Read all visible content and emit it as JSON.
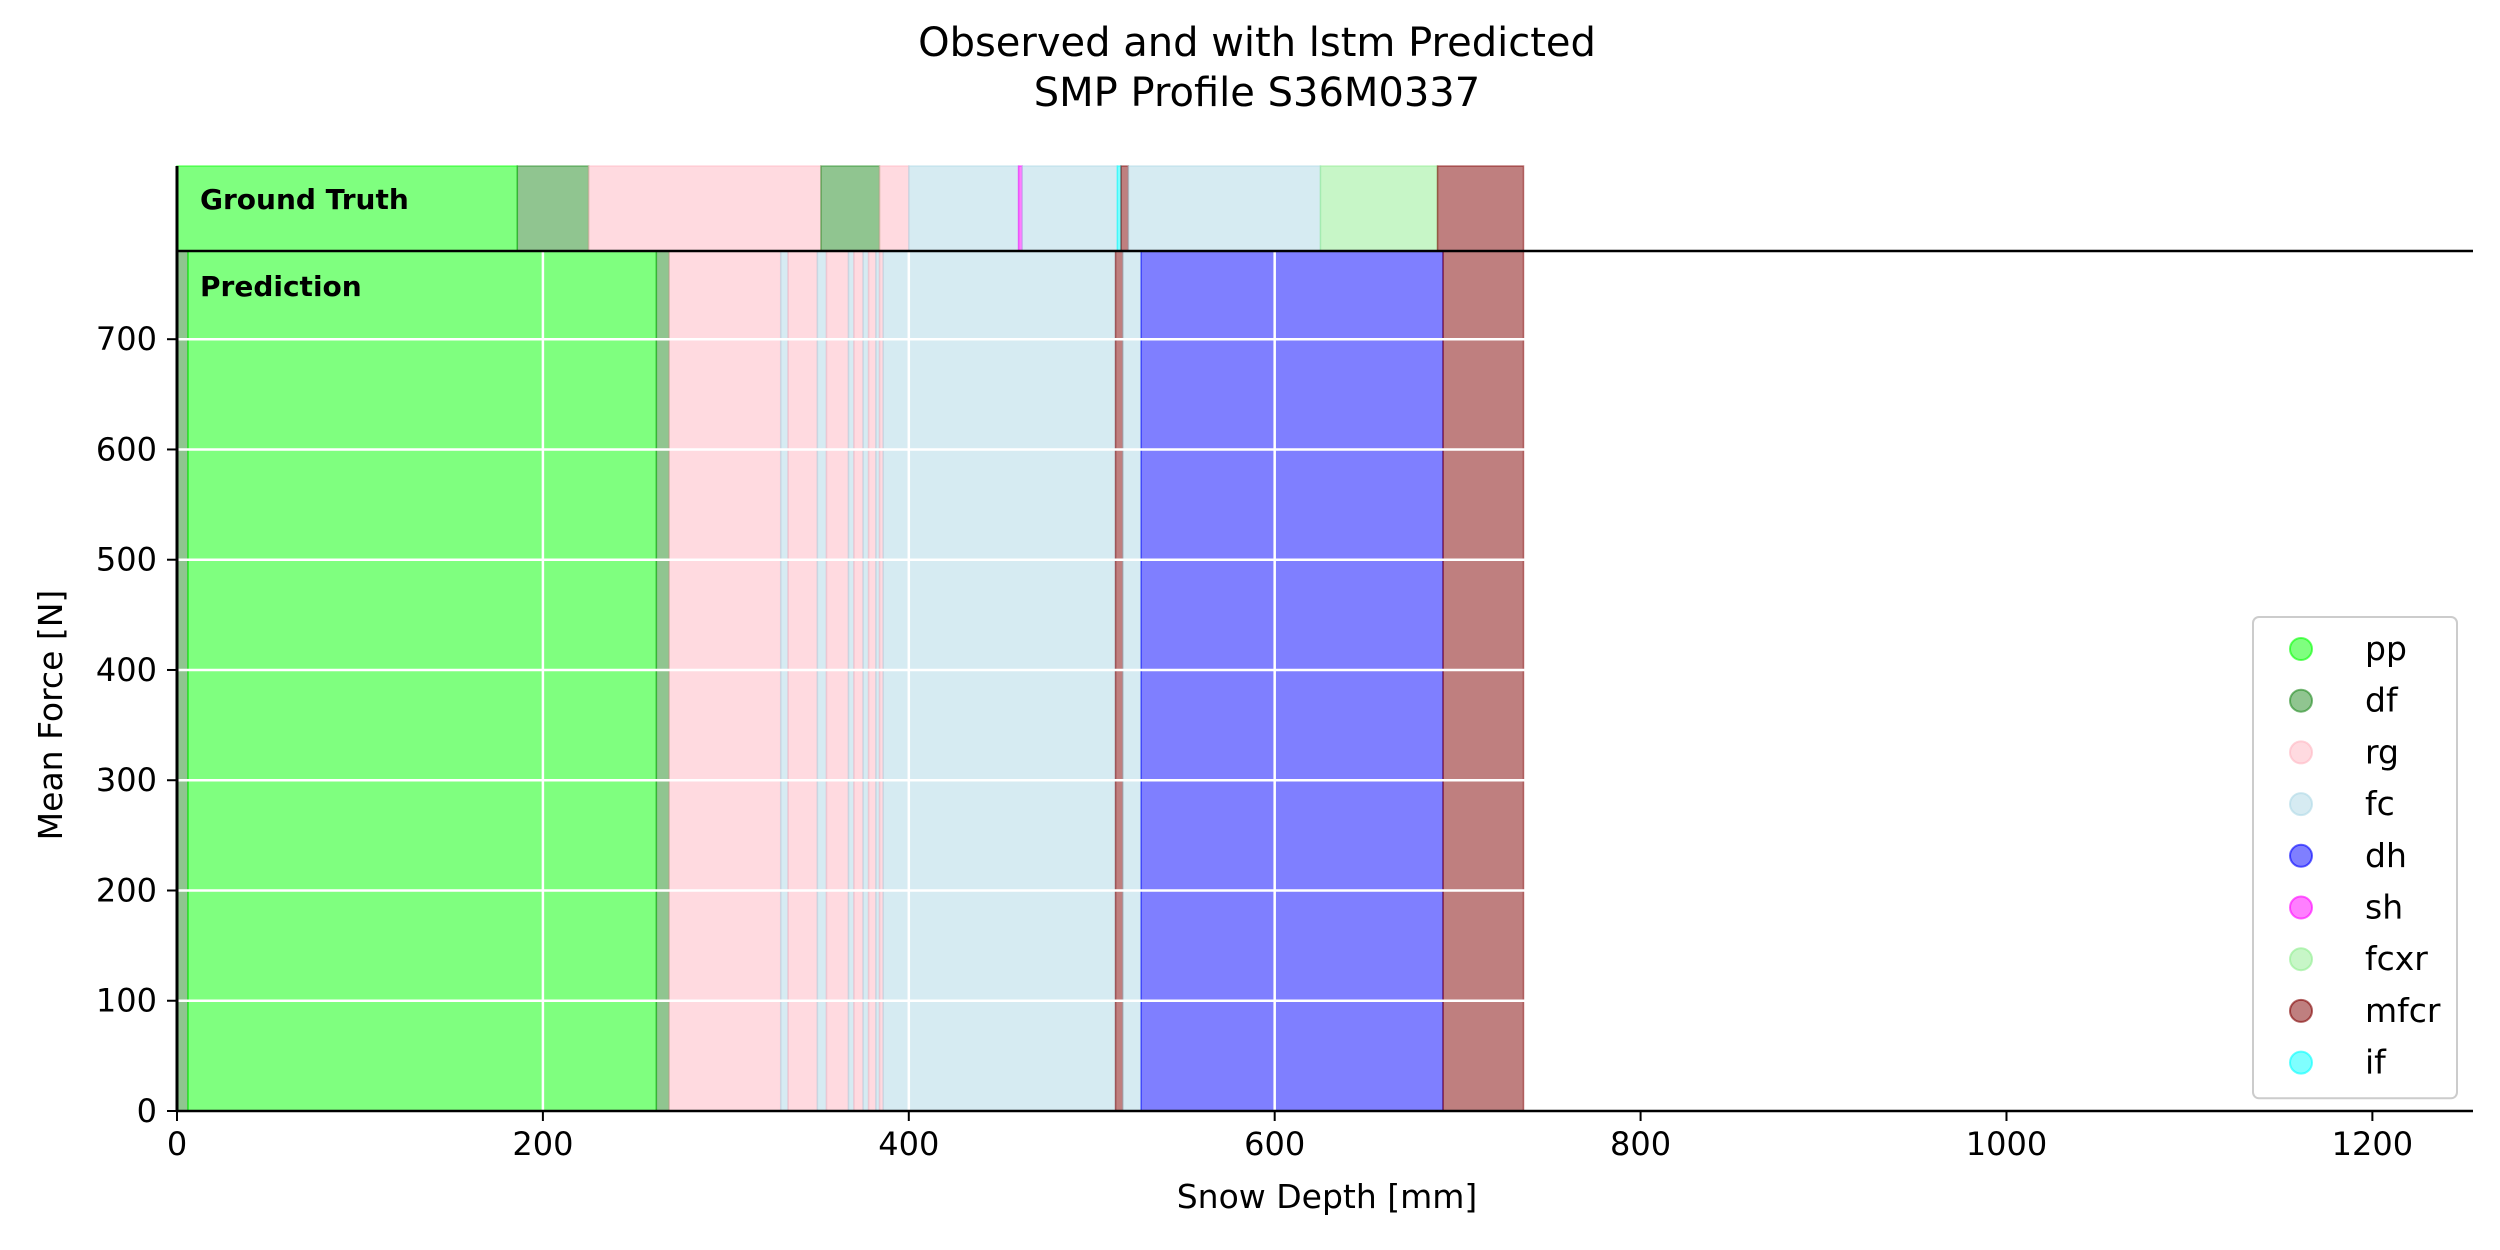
{
  "chart_data": {
    "type": "area",
    "title_line1": "Observed and with lstm Predicted",
    "title_line2": "SMP Profile S36M0337",
    "xlabel": "Snow Depth [mm]",
    "ylabel": "Mean Force [N]",
    "xlim": [
      0,
      1255
    ],
    "ylim": [
      0,
      780
    ],
    "xticks": [
      0,
      200,
      400,
      600,
      800,
      1000,
      1200
    ],
    "yticks": [
      0,
      100,
      200,
      300,
      400,
      500,
      600,
      700
    ],
    "grid": true,
    "legend_position": "lower-right",
    "panels": {
      "ground_truth_label": "Ground Truth",
      "prediction_label": "Prediction"
    },
    "classes": [
      {
        "name": "pp",
        "color": "#00ff00"
      },
      {
        "name": "df",
        "color": "#228b22"
      },
      {
        "name": "rg",
        "color": "#ffb6c1"
      },
      {
        "name": "fc",
        "color": "#add8e6"
      },
      {
        "name": "dh",
        "color": "#0000ff"
      },
      {
        "name": "sh",
        "color": "#ff00ff"
      },
      {
        "name": "fcxr",
        "color": "#90ee90"
      },
      {
        "name": "mfcr",
        "color": "#800000"
      },
      {
        "name": "if",
        "color": "#00ffff"
      }
    ],
    "ground_truth_segments": [
      {
        "start": 0,
        "end": 186,
        "label": "pp"
      },
      {
        "start": 186,
        "end": 225,
        "label": "df"
      },
      {
        "start": 225,
        "end": 352,
        "label": "rg"
      },
      {
        "start": 352,
        "end": 384,
        "label": "df"
      },
      {
        "start": 384,
        "end": 400,
        "label": "rg"
      },
      {
        "start": 400,
        "end": 460,
        "label": "fc"
      },
      {
        "start": 460,
        "end": 462,
        "label": "sh"
      },
      {
        "start": 462,
        "end": 514,
        "label": "fc"
      },
      {
        "start": 514,
        "end": 516,
        "label": "if"
      },
      {
        "start": 516,
        "end": 520,
        "label": "mfcr"
      },
      {
        "start": 520,
        "end": 625,
        "label": "fc"
      },
      {
        "start": 625,
        "end": 689,
        "label": "fcxr"
      },
      {
        "start": 689,
        "end": 736,
        "label": "mfcr"
      }
    ],
    "prediction_segments": [
      {
        "start": 0,
        "end": 6,
        "label": "df"
      },
      {
        "start": 6,
        "end": 262,
        "label": "pp"
      },
      {
        "start": 262,
        "end": 269,
        "label": "df"
      },
      {
        "start": 269,
        "end": 330,
        "label": "rg"
      },
      {
        "start": 330,
        "end": 334,
        "label": "fc"
      },
      {
        "start": 334,
        "end": 350,
        "label": "rg"
      },
      {
        "start": 350,
        "end": 355,
        "label": "fc"
      },
      {
        "start": 355,
        "end": 367,
        "label": "rg"
      },
      {
        "start": 367,
        "end": 370,
        "label": "fc"
      },
      {
        "start": 370,
        "end": 375,
        "label": "rg"
      },
      {
        "start": 375,
        "end": 378,
        "label": "fc"
      },
      {
        "start": 378,
        "end": 382,
        "label": "rg"
      },
      {
        "start": 382,
        "end": 384,
        "label": "fc"
      },
      {
        "start": 384,
        "end": 386,
        "label": "rg"
      },
      {
        "start": 386,
        "end": 513,
        "label": "fc"
      },
      {
        "start": 513,
        "end": 517,
        "label": "mfcr"
      },
      {
        "start": 517,
        "end": 527,
        "label": "fc"
      },
      {
        "start": 527,
        "end": 692,
        "label": "dh"
      },
      {
        "start": 692,
        "end": 736,
        "label": "mfcr"
      }
    ]
  }
}
